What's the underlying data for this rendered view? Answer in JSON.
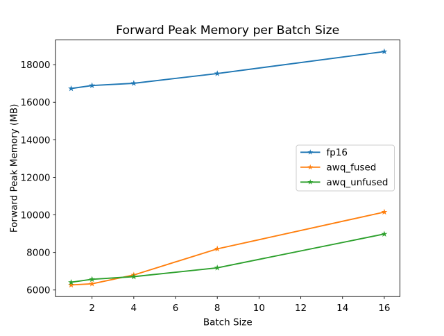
{
  "figure": {
    "background": "#ffffff"
  },
  "chart_data": {
    "type": "line",
    "title": "Forward Peak Memory per Batch Size",
    "xlabel": "Batch Size",
    "ylabel": "Forward Peak Memory (MB)",
    "x": [
      1,
      2,
      4,
      8,
      16
    ],
    "series": [
      {
        "name": "fp16",
        "color": "#1f77b4",
        "marker": "star",
        "values": [
          16730,
          16890,
          17010,
          17530,
          18700
        ]
      },
      {
        "name": "awq_fused",
        "color": "#ff7f0e",
        "marker": "star",
        "values": [
          6270,
          6330,
          6800,
          8190,
          10150
        ]
      },
      {
        "name": "awq_unfused",
        "color": "#2ca02c",
        "marker": "star",
        "values": [
          6410,
          6570,
          6710,
          7180,
          8980
        ]
      }
    ],
    "xticks": [
      2,
      4,
      6,
      8,
      10,
      12,
      14,
      16
    ],
    "yticks": [
      6000,
      8000,
      10000,
      12000,
      14000,
      16000,
      18000
    ],
    "xlim": [
      0.25,
      16.75
    ],
    "ylim": [
      5650,
      19320
    ],
    "grid": false,
    "legend": {
      "position": "center-right",
      "border_color": "#cccccc",
      "background": "#ffffff"
    },
    "axis_color": "#000000",
    "text_color": "#000000"
  }
}
